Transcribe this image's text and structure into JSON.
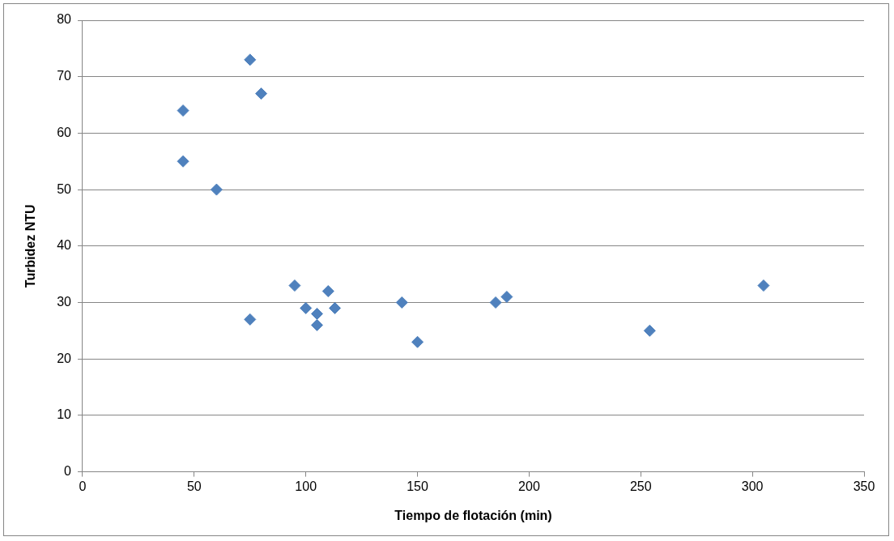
{
  "chart_data": {
    "type": "scatter",
    "xlabel": "Tiempo de flotación (min)",
    "ylabel": "Turbidez NTU",
    "x": [
      45,
      45,
      60,
      75,
      80,
      75,
      95,
      100,
      105,
      105,
      110,
      113,
      143,
      150,
      185,
      190,
      254,
      305
    ],
    "values": [
      64,
      55,
      50,
      73,
      67,
      27,
      33,
      29,
      28,
      26,
      32,
      29,
      30,
      23,
      30,
      31,
      25,
      33
    ],
    "color": "#4f81bd",
    "marker": "diamond",
    "grid": "y",
    "legend": false,
    "xlim": [
      0,
      350
    ],
    "xticks": [
      0,
      50,
      100,
      150,
      200,
      250,
      300,
      350
    ],
    "ylim": [
      0,
      80
    ],
    "yticks": [
      0,
      10,
      20,
      30,
      40,
      50,
      60,
      70,
      80
    ]
  }
}
